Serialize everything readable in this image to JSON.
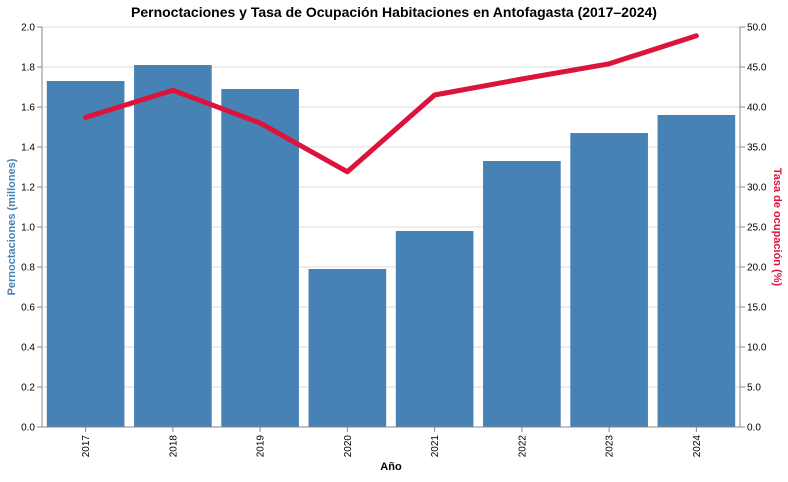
{
  "chart_data": {
    "type": "bar",
    "title": "Pernoctaciones y Tasa de Ocupación Habitaciones en Antofagasta (2017–2024)",
    "xlabel": "Año",
    "ylabel": "Pernoctaciones (millones)",
    "y2label": "Tasa de ocupación (%)",
    "categories": [
      "2017",
      "2018",
      "2019",
      "2020",
      "2021",
      "2022",
      "2023",
      "2024"
    ],
    "ylim": [
      0,
      2.0
    ],
    "y2lim": [
      0,
      50.0
    ],
    "yticks": [
      "0.0",
      "0.2",
      "0.4",
      "0.6",
      "0.8",
      "1.0",
      "1.2",
      "1.4",
      "1.6",
      "1.8",
      "2.0"
    ],
    "y2ticks": [
      "0.0",
      "5.0",
      "10.0",
      "15.0",
      "20.0",
      "25.0",
      "30.0",
      "35.0",
      "40.0",
      "45.0",
      "50.0"
    ],
    "grid": true,
    "legend": "none",
    "series": [
      {
        "type": "bar",
        "axis": "left",
        "color": "#4682b4",
        "values": [
          1.73,
          1.81,
          1.69,
          0.79,
          0.98,
          1.33,
          1.47,
          1.56
        ]
      },
      {
        "type": "line",
        "axis": "right",
        "color": "#dc143c",
        "values": [
          38.7,
          42.1,
          38.0,
          31.9,
          41.5,
          43.5,
          45.4,
          48.9
        ]
      }
    ],
    "colors": {
      "left_axis_label": "#4682b4",
      "right_axis_label": "#dc143c",
      "grid": "#dddddd",
      "axis": "#888888",
      "text": "#000000"
    }
  }
}
